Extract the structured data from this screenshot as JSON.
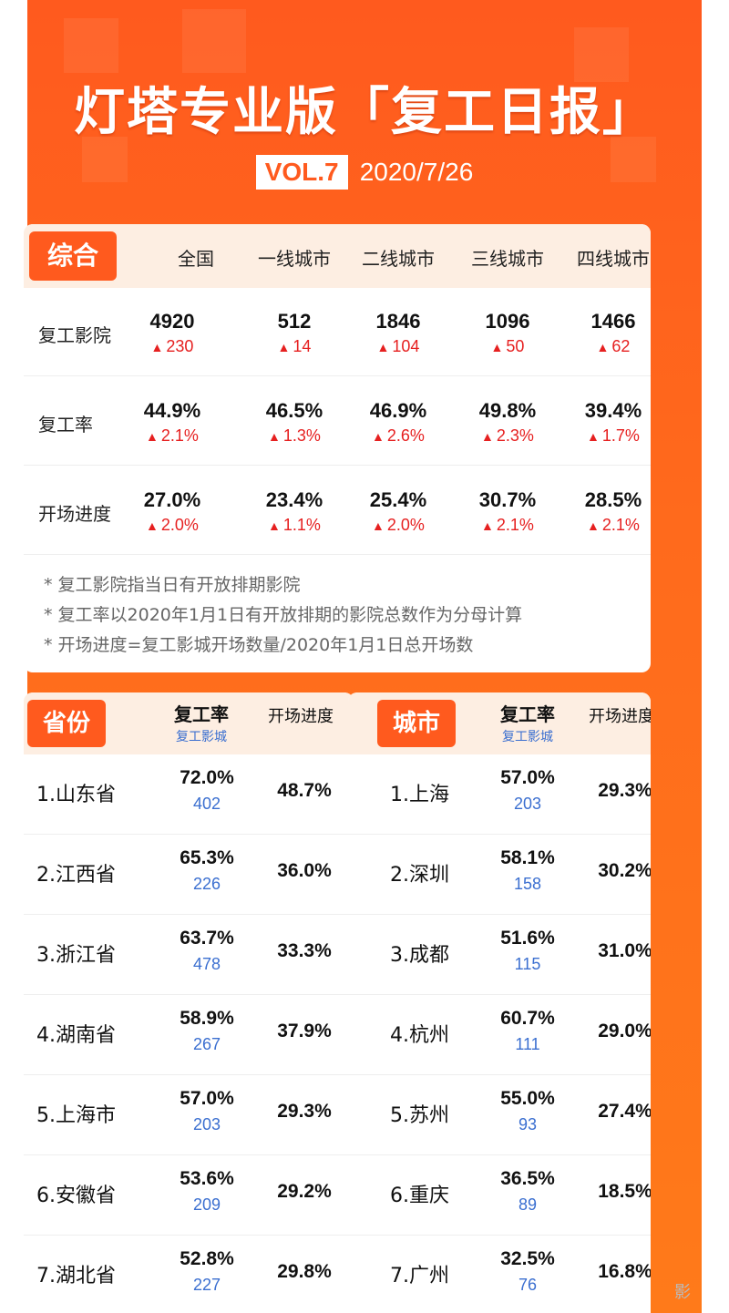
{
  "header": {
    "title": "灯塔专业版「复工日报」",
    "vol": "VOL.7",
    "date": "2020/7/26"
  },
  "summary": {
    "tag": "综合",
    "columns": [
      "全国",
      "一线城市",
      "二线城市",
      "三线城市",
      "四线城市"
    ],
    "rows": [
      {
        "label": "复工影院",
        "values": [
          "4920",
          "512",
          "1846",
          "1096",
          "1466"
        ],
        "deltas": [
          "230",
          "14",
          "104",
          "50",
          "62"
        ]
      },
      {
        "label": "复工率",
        "values": [
          "44.9%",
          "46.5%",
          "46.9%",
          "49.8%",
          "39.4%"
        ],
        "deltas": [
          "2.1%",
          "1.3%",
          "2.6%",
          "2.3%",
          "1.7%"
        ]
      },
      {
        "label": "开场进度",
        "values": [
          "27.0%",
          "23.4%",
          "25.4%",
          "30.7%",
          "28.5%"
        ],
        "deltas": [
          "2.0%",
          "1.1%",
          "2.0%",
          "2.1%",
          "2.1%"
        ]
      }
    ],
    "notes": [
      "* 复工影院指当日有开放排期影院",
      "* 复工率以2020年1月1日有开放排期的影院总数作为分母计算",
      "* 开场进度=复工影城开场数量/2020年1月1日总开场数"
    ]
  },
  "province": {
    "tag": "省份",
    "rate_head": "复工率",
    "rate_sub": "复工影城",
    "progress_head": "开场进度",
    "rows": [
      {
        "name": "1.山东省",
        "rate": "72.0%",
        "count": "402",
        "progress": "48.7%"
      },
      {
        "name": "2.江西省",
        "rate": "65.3%",
        "count": "226",
        "progress": "36.0%"
      },
      {
        "name": "3.浙江省",
        "rate": "63.7%",
        "count": "478",
        "progress": "33.3%"
      },
      {
        "name": "4.湖南省",
        "rate": "58.9%",
        "count": "267",
        "progress": "37.9%"
      },
      {
        "name": "5.上海市",
        "rate": "57.0%",
        "count": "203",
        "progress": "29.3%"
      },
      {
        "name": "6.安徽省",
        "rate": "53.6%",
        "count": "209",
        "progress": "29.2%"
      },
      {
        "name": "7.湖北省",
        "rate": "52.8%",
        "count": "227",
        "progress": "29.8%"
      }
    ]
  },
  "city": {
    "tag": "城市",
    "rate_head": "复工率",
    "rate_sub": "复工影城",
    "progress_head": "开场进度",
    "rows": [
      {
        "name": "1.上海",
        "rate": "57.0%",
        "count": "203",
        "progress": "29.3%"
      },
      {
        "name": "2.深圳",
        "rate": "58.1%",
        "count": "158",
        "progress": "30.2%"
      },
      {
        "name": "3.成都",
        "rate": "51.6%",
        "count": "115",
        "progress": "31.0%"
      },
      {
        "name": "4.杭州",
        "rate": "60.7%",
        "count": "111",
        "progress": "29.0%"
      },
      {
        "name": "5.苏州",
        "rate": "55.0%",
        "count": "93",
        "progress": "27.4%"
      },
      {
        "name": "6.重庆",
        "rate": "36.5%",
        "count": "89",
        "progress": "18.5%"
      },
      {
        "name": "7.广州",
        "rate": "32.5%",
        "count": "76",
        "progress": "16.8%"
      }
    ]
  },
  "watermark": "影",
  "colors": {
    "brand": "#ff5a1e",
    "increase": "#e62020",
    "count": "#3b6fd0"
  }
}
